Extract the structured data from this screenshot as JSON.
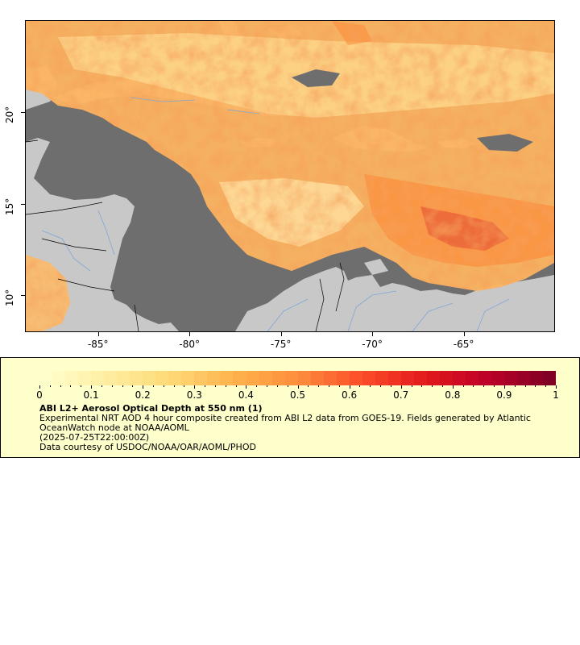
{
  "map": {
    "lon_range": [
      -89,
      -60
    ],
    "lat_range": [
      8,
      25
    ],
    "x_ticks": [
      {
        "value": -85,
        "label": "-85°"
      },
      {
        "value": -80,
        "label": "-80°"
      },
      {
        "value": -75,
        "label": "-75°"
      },
      {
        "value": -70,
        "label": "-70°"
      },
      {
        "value": -65,
        "label": "-65°"
      }
    ],
    "y_ticks": [
      {
        "value": 20,
        "label": "20°"
      },
      {
        "value": 15,
        "label": "15°"
      },
      {
        "value": 10,
        "label": "10°"
      }
    ],
    "colors": {
      "ocean_no_data": "#6e6e6e",
      "land": "#c8c8c8",
      "rivers": "#7fa6d6",
      "borders": "#000000"
    }
  },
  "legend": {
    "title": "ABI L2+ Aerosol Optical Depth at 550 nm (1)",
    "description": "Experimental NRT AOD 4 hour composite created from ABI L2 data from GOES-19. Fields generated by Atlantic OceanWatch node at NOAA/AOML",
    "timestamp": "(2025-07-25T22:00:00Z)",
    "credit": "Data courtesy of USDOC/NOAA/OAR/AOML/PHOD",
    "scale_min": 0,
    "scale_max": 1,
    "tick_labels": [
      "0",
      "0.1",
      "0.2",
      "0.3",
      "0.4",
      "0.5",
      "0.6",
      "0.7",
      "0.8",
      "0.9",
      "1"
    ],
    "colormap": [
      "#ffffcc",
      "#ffeda0",
      "#fed976",
      "#feb24c",
      "#fd8d3c",
      "#fc4e2a",
      "#e31a1c",
      "#bd0026",
      "#800026"
    ],
    "background_color": "#ffffcc"
  }
}
